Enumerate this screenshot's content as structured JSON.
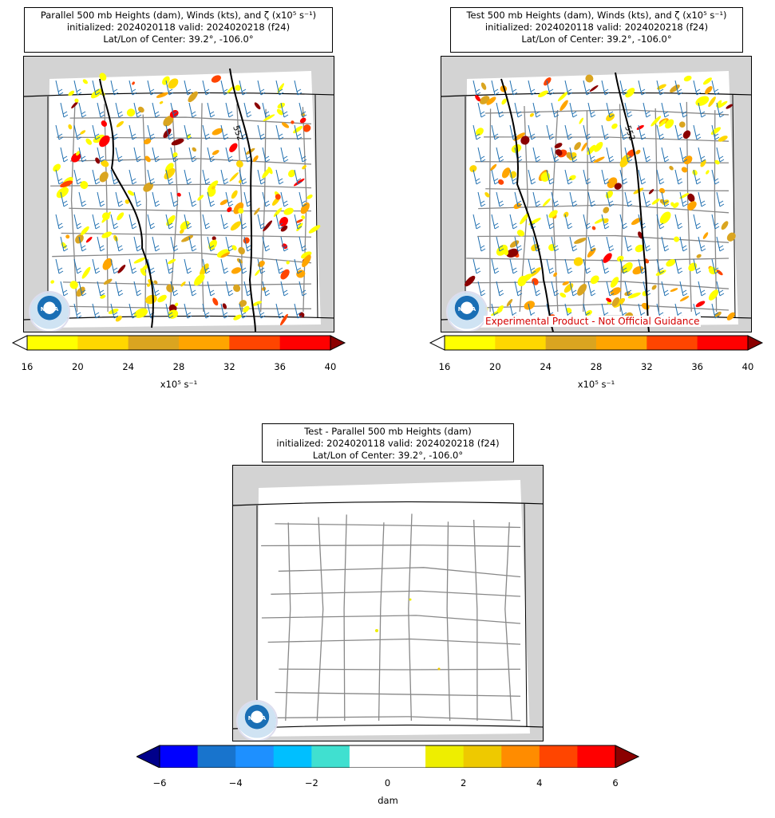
{
  "panels": [
    {
      "title": [
        "Parallel 500 mb Heights (dam), Winds (kts), and ζ (x10⁵ s⁻¹)",
        "initialized: 2024020118 valid: 2024020218 (f24)",
        "Lat/Lon of Center: 39.2°, -106.0°"
      ],
      "contour_label": "552",
      "cbar_ticks": [
        "16",
        "20",
        "24",
        "28",
        "32",
        "36",
        "40"
      ],
      "cbar_colors": [
        "#ffff00",
        "#ffd700",
        "#daa520",
        "#ffa500",
        "#ff4500",
        "#ff0000"
      ],
      "cbar_under": "#ffffff",
      "cbar_over": "#8b0000",
      "cbar_unit": "x10⁵ s⁻¹"
    },
    {
      "title": [
        "Test 500 mb Heights (dam), Winds (kts), and ζ (x10⁵ s⁻¹)",
        "initialized: 2024020118 valid: 2024020218 (f24)",
        "Lat/Lon of Center: 39.2°, -106.0°"
      ],
      "contour_label": "552",
      "experimental": "Experimental Product - Not Official Guidance",
      "cbar_ticks": [
        "16",
        "20",
        "24",
        "28",
        "32",
        "36",
        "40"
      ],
      "cbar_colors": [
        "#ffff00",
        "#ffd700",
        "#daa520",
        "#ffa500",
        "#ff4500",
        "#ff0000"
      ],
      "cbar_under": "#ffffff",
      "cbar_over": "#8b0000",
      "cbar_unit": "x10⁵ s⁻¹"
    },
    {
      "title": [
        "Test - Parallel 500 mb Heights (dam)",
        "initialized: 2024020118 valid: 2024020218 (f24)",
        "Lat/Lon of Center: 39.2°, -106.0°"
      ],
      "cbar_ticks": [
        "−6",
        "−4",
        "−2",
        "0",
        "2",
        "4",
        "6"
      ],
      "cbar_colors": [
        "#0000ff",
        "#1874cd",
        "#1e90ff",
        "#00bfff",
        "#40e0d0",
        "#ffffff",
        "#ffffff",
        "#eeee00",
        "#eec900",
        "#ff8c00",
        "#ff4500",
        "#ff0000"
      ],
      "cbar_under": "#00008b",
      "cbar_over": "#8b0000",
      "cbar_unit": "dam"
    }
  ],
  "logo_text": "NOAA"
}
